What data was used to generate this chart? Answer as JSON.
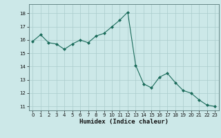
{
  "x": [
    0,
    1,
    2,
    3,
    4,
    5,
    6,
    7,
    8,
    9,
    10,
    11,
    12,
    13,
    14,
    15,
    16,
    17,
    18,
    19,
    20,
    21,
    22,
    23
  ],
  "y": [
    15.9,
    16.4,
    15.8,
    15.7,
    15.3,
    15.7,
    16.0,
    15.8,
    16.3,
    16.5,
    17.0,
    17.5,
    18.1,
    14.1,
    12.7,
    12.4,
    13.2,
    13.5,
    12.8,
    12.2,
    12.0,
    11.5,
    11.1,
    11.0
  ],
  "xlabel": "Humidex (Indice chaleur)",
  "bg_color": "#cce8e8",
  "grid_color": "#aacccc",
  "line_color": "#1a6b5a",
  "marker_color": "#1a6b5a",
  "xlim": [
    -0.5,
    23.5
  ],
  "ylim": [
    10.7,
    18.7
  ],
  "yticks": [
    11,
    12,
    13,
    14,
    15,
    16,
    17,
    18
  ],
  "xticks": [
    0,
    1,
    2,
    3,
    4,
    5,
    6,
    7,
    8,
    9,
    10,
    11,
    12,
    13,
    14,
    15,
    16,
    17,
    18,
    19,
    20,
    21,
    22,
    23
  ]
}
